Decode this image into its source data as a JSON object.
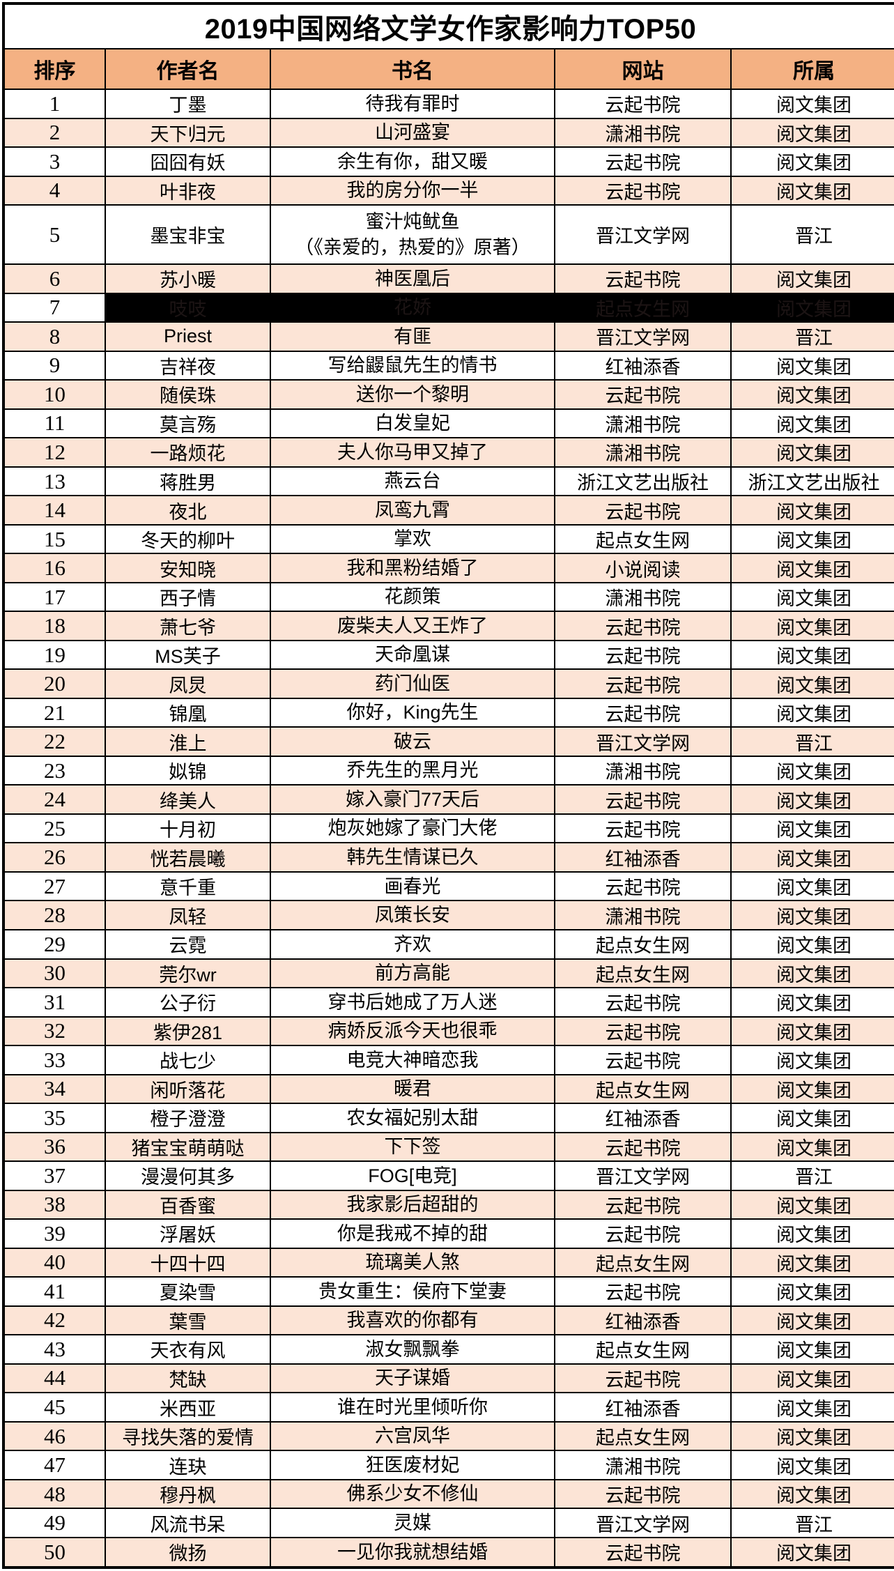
{
  "title": "2019中国网络文学女作家影响力TOP50",
  "colors": {
    "header_bg": "#F4B183",
    "stripe_bg": "#FCE4D6",
    "plain_bg": "#FFFFFF",
    "border": "#000000",
    "text": "#000000",
    "redacted_bg": "#000000",
    "redacted_text": "#1C1414"
  },
  "table": {
    "headers": [
      "排序",
      "作者名",
      "书名",
      "网站",
      "所属"
    ],
    "rows": [
      {
        "rank": "1",
        "author": "丁墨",
        "book": "待我有罪时",
        "site": "云起书院",
        "org": "阅文集团"
      },
      {
        "rank": "2",
        "author": "天下归元",
        "book": "山河盛宴",
        "site": "潇湘书院",
        "org": "阅文集团"
      },
      {
        "rank": "3",
        "author": "囧囧有妖",
        "book": "余生有你，甜又暖",
        "site": "云起书院",
        "org": "阅文集团"
      },
      {
        "rank": "4",
        "author": "叶非夜",
        "book": "我的房分你一半",
        "site": "云起书院",
        "org": "阅文集团"
      },
      {
        "rank": "5",
        "author": "墨宝非宝",
        "book": "蜜汁炖鱿鱼\n（《亲爱的，热爱的》原著）",
        "site": "晋江文学网",
        "org": "晋江",
        "tall": true
      },
      {
        "rank": "6",
        "author": "苏小暖",
        "book": "神医凰后",
        "site": "云起书院",
        "org": "阅文集团"
      },
      {
        "rank": "7",
        "author": "吱吱",
        "book": "花娇",
        "site": "起点女生网",
        "org": "阅文集团",
        "redacted": true
      },
      {
        "rank": "8",
        "author": "Priest",
        "book": "有匪",
        "site": "晋江文学网",
        "org": "晋江"
      },
      {
        "rank": "9",
        "author": "吉祥夜",
        "book": "写给鼹鼠先生的情书",
        "site": "红袖添香",
        "org": "阅文集团"
      },
      {
        "rank": "10",
        "author": "随侯珠",
        "book": "送你一个黎明",
        "site": "云起书院",
        "org": "阅文集团"
      },
      {
        "rank": "11",
        "author": "莫言殇",
        "book": "白发皇妃",
        "site": "潇湘书院",
        "org": "阅文集团"
      },
      {
        "rank": "12",
        "author": "一路烦花",
        "book": "夫人你马甲又掉了",
        "site": "潇湘书院",
        "org": "阅文集团"
      },
      {
        "rank": "13",
        "author": "蒋胜男",
        "book": "燕云台",
        "site": "浙江文艺出版社",
        "org": "浙江文艺出版社"
      },
      {
        "rank": "14",
        "author": "夜北",
        "book": "凤鸾九霄",
        "site": "云起书院",
        "org": "阅文集团"
      },
      {
        "rank": "15",
        "author": "冬天的柳叶",
        "book": "掌欢",
        "site": "起点女生网",
        "org": "阅文集团"
      },
      {
        "rank": "16",
        "author": "安知晓",
        "book": "我和黑粉结婚了",
        "site": "小说阅读",
        "org": "阅文集团"
      },
      {
        "rank": "17",
        "author": "西子情",
        "book": "花颜策",
        "site": "潇湘书院",
        "org": "阅文集团"
      },
      {
        "rank": "18",
        "author": "萧七爷",
        "book": "废柴夫人又王炸了",
        "site": "云起书院",
        "org": "阅文集团"
      },
      {
        "rank": "19",
        "author": "MS芙子",
        "book": "天命凰谋",
        "site": "云起书院",
        "org": "阅文集团"
      },
      {
        "rank": "20",
        "author": "凤炅",
        "book": "药门仙医",
        "site": "云起书院",
        "org": "阅文集团"
      },
      {
        "rank": "21",
        "author": "锦凰",
        "book": "你好，King先生",
        "site": "云起书院",
        "org": "阅文集团"
      },
      {
        "rank": "22",
        "author": "淮上",
        "book": "破云",
        "site": "晋江文学网",
        "org": "晋江"
      },
      {
        "rank": "23",
        "author": "姒锦",
        "book": "乔先生的黑月光",
        "site": "潇湘书院",
        "org": "阅文集团"
      },
      {
        "rank": "24",
        "author": "绛美人",
        "book": "嫁入豪门77天后",
        "site": "云起书院",
        "org": "阅文集团"
      },
      {
        "rank": "25",
        "author": "十月初",
        "book": "炮灰她嫁了豪门大佬",
        "site": "云起书院",
        "org": "阅文集团"
      },
      {
        "rank": "26",
        "author": "恍若晨曦",
        "book": "韩先生情谋已久",
        "site": "红袖添香",
        "org": "阅文集团"
      },
      {
        "rank": "27",
        "author": "意千重",
        "book": "画春光",
        "site": "云起书院",
        "org": "阅文集团"
      },
      {
        "rank": "28",
        "author": "凤轻",
        "book": "凤策长安",
        "site": "潇湘书院",
        "org": "阅文集团"
      },
      {
        "rank": "29",
        "author": "云霓",
        "book": "齐欢",
        "site": "起点女生网",
        "org": "阅文集团"
      },
      {
        "rank": "30",
        "author": "莞尔wr",
        "book": "前方高能",
        "site": "起点女生网",
        "org": "阅文集团"
      },
      {
        "rank": "31",
        "author": "公子衍",
        "book": "穿书后她成了万人迷",
        "site": "云起书院",
        "org": "阅文集团"
      },
      {
        "rank": "32",
        "author": "紫伊281",
        "book": "病娇反派今天也很乖",
        "site": "云起书院",
        "org": "阅文集团"
      },
      {
        "rank": "33",
        "author": "战七少",
        "book": "电竞大神暗恋我",
        "site": "云起书院",
        "org": "阅文集团"
      },
      {
        "rank": "34",
        "author": "闲听落花",
        "book": "暖君",
        "site": "起点女生网",
        "org": "阅文集团"
      },
      {
        "rank": "35",
        "author": "橙子澄澄",
        "book": "农女福妃别太甜",
        "site": "红袖添香",
        "org": "阅文集团"
      },
      {
        "rank": "36",
        "author": "猪宝宝萌萌哒",
        "book": "下下签",
        "site": "云起书院",
        "org": "阅文集团"
      },
      {
        "rank": "37",
        "author": "漫漫何其多",
        "book": "FOG[电竞]",
        "site": "晋江文学网",
        "org": "晋江"
      },
      {
        "rank": "38",
        "author": "百香蜜",
        "book": "我家影后超甜的",
        "site": "云起书院",
        "org": "阅文集团"
      },
      {
        "rank": "39",
        "author": "浮屠妖",
        "book": "你是我戒不掉的甜",
        "site": "云起书院",
        "org": "阅文集团"
      },
      {
        "rank": "40",
        "author": "十四十四",
        "book": "琉璃美人煞",
        "site": "起点女生网",
        "org": "阅文集团"
      },
      {
        "rank": "41",
        "author": "夏染雪",
        "book": "贵女重生：侯府下堂妻",
        "site": "云起书院",
        "org": "阅文集团"
      },
      {
        "rank": "42",
        "author": "葉雪",
        "book": "我喜欢的你都有",
        "site": "红袖添香",
        "org": "阅文集团"
      },
      {
        "rank": "43",
        "author": "天衣有风",
        "book": "淑女飘飘拳",
        "site": "起点女生网",
        "org": "阅文集团"
      },
      {
        "rank": "44",
        "author": "梵缺",
        "book": "天子谋婚",
        "site": "云起书院",
        "org": "阅文集团"
      },
      {
        "rank": "45",
        "author": "米西亚",
        "book": "谁在时光里倾听你",
        "site": "红袖添香",
        "org": "阅文集团"
      },
      {
        "rank": "46",
        "author": "寻找失落的爱情",
        "book": "六宫凤华",
        "site": "起点女生网",
        "org": "阅文集团"
      },
      {
        "rank": "47",
        "author": "连玦",
        "book": "狂医废材妃",
        "site": "潇湘书院",
        "org": "阅文集团"
      },
      {
        "rank": "48",
        "author": "穆丹枫",
        "book": "佛系少女不修仙",
        "site": "云起书院",
        "org": "阅文集团"
      },
      {
        "rank": "49",
        "author": "风流书呆",
        "book": "灵媒",
        "site": "晋江文学网",
        "org": "晋江"
      },
      {
        "rank": "50",
        "author": "微扬",
        "book": "一见你我就想结婚",
        "site": "云起书院",
        "org": "阅文集团"
      }
    ]
  }
}
